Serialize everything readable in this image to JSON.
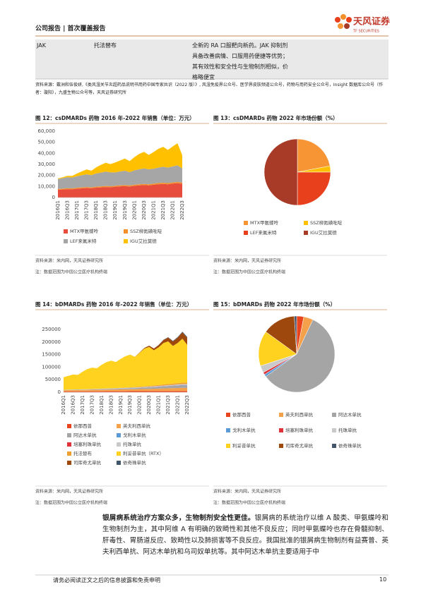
{
  "header": {
    "left": "公司报告 | 首次覆盖报告",
    "logo": "天风证券",
    "logo_en": "TF SECURITIES"
  },
  "table": {
    "rows": [
      [
        "JAK",
        "托法替布",
        "全新的 RA 口服靶向新药。JAK 抑制剂具备改善病情、口服用药便捷等优势；其有效性和安全性与生物制剂相似，价格略便宜"
      ]
    ]
  },
  "table_source": "资料来源：戴洲和伍俊妍,《类风湿关节炎超药品说明书用药中国专家共识（2022 版）》, 风湿免疫界公众号、医学界皮肤频道公众号，药物与用药安全公众号，Insight 数据库公众号（作者：璇阳），九盛生物公众号等，天风证券研究所",
  "chart_data": [
    {
      "type": "area",
      "title": "图 12：csDMARDs 药物 2016 年-2022 年销售（单位：万元）",
      "categories": [
        "2016Q1",
        null,
        "2016Q3",
        null,
        "2017Q1",
        null,
        "2017Q3",
        null,
        "2018Q1",
        null,
        "2018Q3",
        null,
        "2019Q1",
        null,
        "2019Q3",
        null,
        "2020Q1",
        null,
        "2020Q3",
        null,
        "2021Q1",
        null,
        "2021Q3",
        null,
        "2022Q1",
        null,
        "2022Q3"
      ],
      "series": [
        {
          "name": "MTX甲氨蝶呤",
          "color": "#e84c3d",
          "values": [
            7000,
            7300,
            7600,
            7500,
            8000,
            8300,
            8600,
            8400,
            8900,
            9200,
            9500,
            9300,
            9800,
            10100,
            10300,
            10000,
            10600,
            11000,
            11300,
            11000,
            11600,
            12000,
            12300,
            12000,
            12600,
            13000,
            12400
          ]
        },
        {
          "name": "SSZ柳氮磺吡啶",
          "color": "#f58f29",
          "values": [
            700,
            750,
            800,
            780,
            820,
            850,
            870,
            860,
            880,
            900,
            920,
            900,
            930,
            950,
            970,
            950,
            980,
            1000,
            1020,
            1000,
            1030,
            1050,
            1070,
            1050,
            1080,
            1100,
            1000
          ]
        },
        {
          "name": "LEF来氟米特",
          "color": "#a6a6a6",
          "values": [
            9000,
            9500,
            10000,
            9800,
            10500,
            11000,
            11500,
            11000,
            12000,
            12500,
            13000,
            12500,
            12000,
            12500,
            13000,
            12000,
            13000,
            13500,
            14000,
            13500,
            13500,
            14000,
            14500,
            14000,
            14500,
            15000,
            13000
          ]
        },
        {
          "name": "IGU艾拉莫德",
          "color": "#ffc000",
          "values": [
            500,
            800,
            1200,
            1500,
            2500,
            3500,
            4500,
            4000,
            5500,
            7000,
            8000,
            7500,
            9000,
            10000,
            11000,
            10000,
            12000,
            14000,
            15000,
            13000,
            15000,
            17000,
            18000,
            16000,
            18000,
            20000,
            12000
          ]
        }
      ],
      "ylim": [
        0,
        60000
      ],
      "yticks": [
        0,
        {
          "value": 10000,
          "label": "10,000"
        },
        {
          "value": 20000,
          "label": "20,000"
        },
        {
          "value": 30000,
          "label": "30,000"
        },
        {
          "value": 40000,
          "label": "40,000"
        },
        {
          "value": 50000,
          "label": "50,000"
        },
        {
          "value": 60000,
          "label": "60,000"
        }
      ],
      "grid": false,
      "source": "资料来源：米内网，天风证券研究所",
      "note": "注：数据范围为中国公立医疗机构终端"
    },
    {
      "type": "pie",
      "title": "图 13：csDMARDs 药物 2022 年市场份额（%）",
      "categories": [
        "MTX甲氨蝶呤",
        "SSZ柳氮磺吡啶",
        "LEF来氟米特",
        "IGU艾拉莫德"
      ],
      "values": [
        22,
        3,
        25,
        50
      ],
      "colors": [
        "#f79433",
        "#ffc000",
        "#e8401c",
        "#a83a28"
      ],
      "source": "资料来源：米内网，天风证券研究所",
      "note": "注：数据范围为中国公立医疗机构终端"
    },
    {
      "type": "area",
      "title": "图 14：bDMARDs 药物 2016 年-2022 年销售（单位：万元）",
      "categories": [
        "2016Q1",
        null,
        "2016Q3",
        null,
        "2017Q1",
        null,
        "2017Q3",
        null,
        "2018Q1",
        null,
        "2018Q3",
        null,
        "2019Q1",
        null,
        "2019Q3",
        null,
        "2020Q1",
        null,
        "2020Q3",
        null,
        "2021Q1",
        null,
        "2021Q3",
        null,
        "2022Q1",
        null,
        "2022Q3"
      ],
      "series": [
        {
          "name": "依那西普",
          "color": "#e8451f",
          "values": [
            3000,
            3100,
            3200,
            3200,
            3300,
            3400,
            3500,
            3500,
            3600,
            3700,
            3800,
            3800,
            3900,
            4000,
            4100,
            4100,
            4200,
            4300,
            4400,
            4400,
            4500,
            4600,
            4700,
            4700,
            4800,
            4900,
            5000
          ]
        },
        {
          "name": "英夫利西单抗",
          "color": "#f5a04a",
          "values": [
            5000,
            5200,
            5400,
            5600,
            5800,
            6000,
            6200,
            6400,
            6600,
            6800,
            7000,
            7200,
            7400,
            7600,
            7800,
            8000,
            8300,
            8600,
            9000,
            9500,
            10000,
            10500,
            11000,
            11500,
            12000,
            12500,
            12000
          ]
        },
        {
          "name": "阿达木单抗",
          "color": "#a5a5a5",
          "values": [
            500,
            600,
            700,
            800,
            900,
            1000,
            1200,
            1400,
            1600,
            1800,
            2000,
            2300,
            2600,
            3000,
            3400,
            3800,
            4300,
            4800,
            5400,
            6000,
            6700,
            7400,
            8000,
            8600,
            9200,
            9800,
            10000
          ]
        },
        {
          "name": "戈利木单抗",
          "color": "#5b9bd5",
          "values": [
            200,
            220,
            240,
            260,
            280,
            300,
            320,
            340,
            360,
            380,
            400,
            430,
            460,
            490,
            520,
            550,
            580,
            610,
            640,
            680,
            720,
            760,
            800,
            840,
            880,
            920,
            950
          ]
        },
        {
          "name": "培塞利珠单抗",
          "color": "#e0303a",
          "values": [
            0,
            0,
            0,
            0,
            0,
            0,
            0,
            0,
            0,
            0,
            0,
            0,
            50,
            80,
            100,
            150,
            200,
            250,
            300,
            350,
            400,
            450,
            500,
            550,
            600,
            700,
            800
          ]
        },
        {
          "name": "托珠单抗",
          "color": "#c9c9c9",
          "values": [
            1000,
            1100,
            1200,
            1300,
            1400,
            1500,
            1600,
            1700,
            1800,
            1900,
            2000,
            2100,
            2200,
            2300,
            2400,
            2500,
            2600,
            2700,
            2800,
            2900,
            3000,
            3100,
            3200,
            3400,
            3600,
            3800,
            4000
          ]
        },
        {
          "name": "托法替布",
          "color": "#f0a030",
          "values": [
            0,
            0,
            0,
            0,
            0,
            0,
            0,
            100,
            200,
            300,
            400,
            600,
            800,
            1000,
            1300,
            1600,
            2000,
            2400,
            2800,
            3200,
            3600,
            4000,
            4400,
            4800,
            5200,
            5600,
            6000
          ]
        },
        {
          "name": "利妥昔单抗（RTX）",
          "color": "#ffd21f",
          "values": [
            50000,
            55000,
            60000,
            58000,
            70000,
            80000,
            85000,
            82000,
            95000,
            105000,
            110000,
            104000,
            115000,
            125000,
            130000,
            120000,
            135000,
            150000,
            155000,
            140000,
            150000,
            165000,
            170000,
            150000,
            160000,
            175000,
            150000
          ]
        },
        {
          "name": "司库奇尤单抗",
          "color": "#9e480e",
          "values": [
            0,
            0,
            0,
            0,
            0,
            0,
            0,
            0,
            0,
            0,
            0,
            0,
            0,
            0,
            0,
            500,
            1500,
            3000,
            5000,
            7000,
            9000,
            12000,
            15000,
            18000,
            21000,
            25000,
            28000
          ]
        },
        {
          "name": "依奇珠单抗",
          "color": "#44546a",
          "values": [
            0,
            0,
            0,
            0,
            0,
            0,
            0,
            0,
            0,
            0,
            0,
            0,
            0,
            0,
            0,
            0,
            0,
            0,
            0,
            0,
            500,
            1000,
            1500,
            2000,
            2500,
            3000,
            3500
          ]
        }
      ],
      "ylim": [
        0,
        250000
      ],
      "yticks": [
        0,
        50000,
        100000,
        150000,
        200000,
        250000
      ],
      "grid": false,
      "source": "资料来源：米内网，天风证券研究所",
      "note": "注：数据范围为中国公立医疗机构终端"
    },
    {
      "type": "pie",
      "title": "图 15：bDMARDs 药物 2022 年市场份额（%）",
      "categories": [
        "依那西普",
        "英夫利西单抗",
        "阿达木单抗",
        "戈利木单抗",
        "培塞利珠单抗",
        "托珠单抗",
        "利妥昔单抗",
        "司库奇尤单抗",
        "依奇珠单抗"
      ],
      "values": [
        3,
        4,
        58,
        1,
        1,
        3,
        15,
        14,
        1
      ],
      "colors": [
        "#e8451f",
        "#f5a04a",
        "#a5a5a5",
        "#5b9bd5",
        "#e0303a",
        "#c9c9c9",
        "#ffd21f",
        "#9e480e",
        "#44546a"
      ],
      "source": "资料来源：米内网，天风证券研究所",
      "note": "注：数据范围为中国公立医疗机构终端"
    }
  ],
  "body": {
    "bold": "银屑病系统治疗方案众多，生物制剂安全性更佳。",
    "text": "银屑病的系统治疗以维 A 酸类、甲氨蝶呤和生物制剂为主，其中阿维 A 有明确的致畸性和其他不良反应；同时甲氨蝶呤也存在骨髓抑制、肝毒性、胃肠道反应、致畸性以及肺损害等不良反应。我国批准的银屑病生物制剂有益赛普、英夫利西单抗、阿达木单抗和乌司奴单抗等。其中阿达木单抗主要适用于中"
  },
  "footer": {
    "disclaimer": "请务必阅读正文之后的信息披露和免责申明",
    "page": "10"
  }
}
